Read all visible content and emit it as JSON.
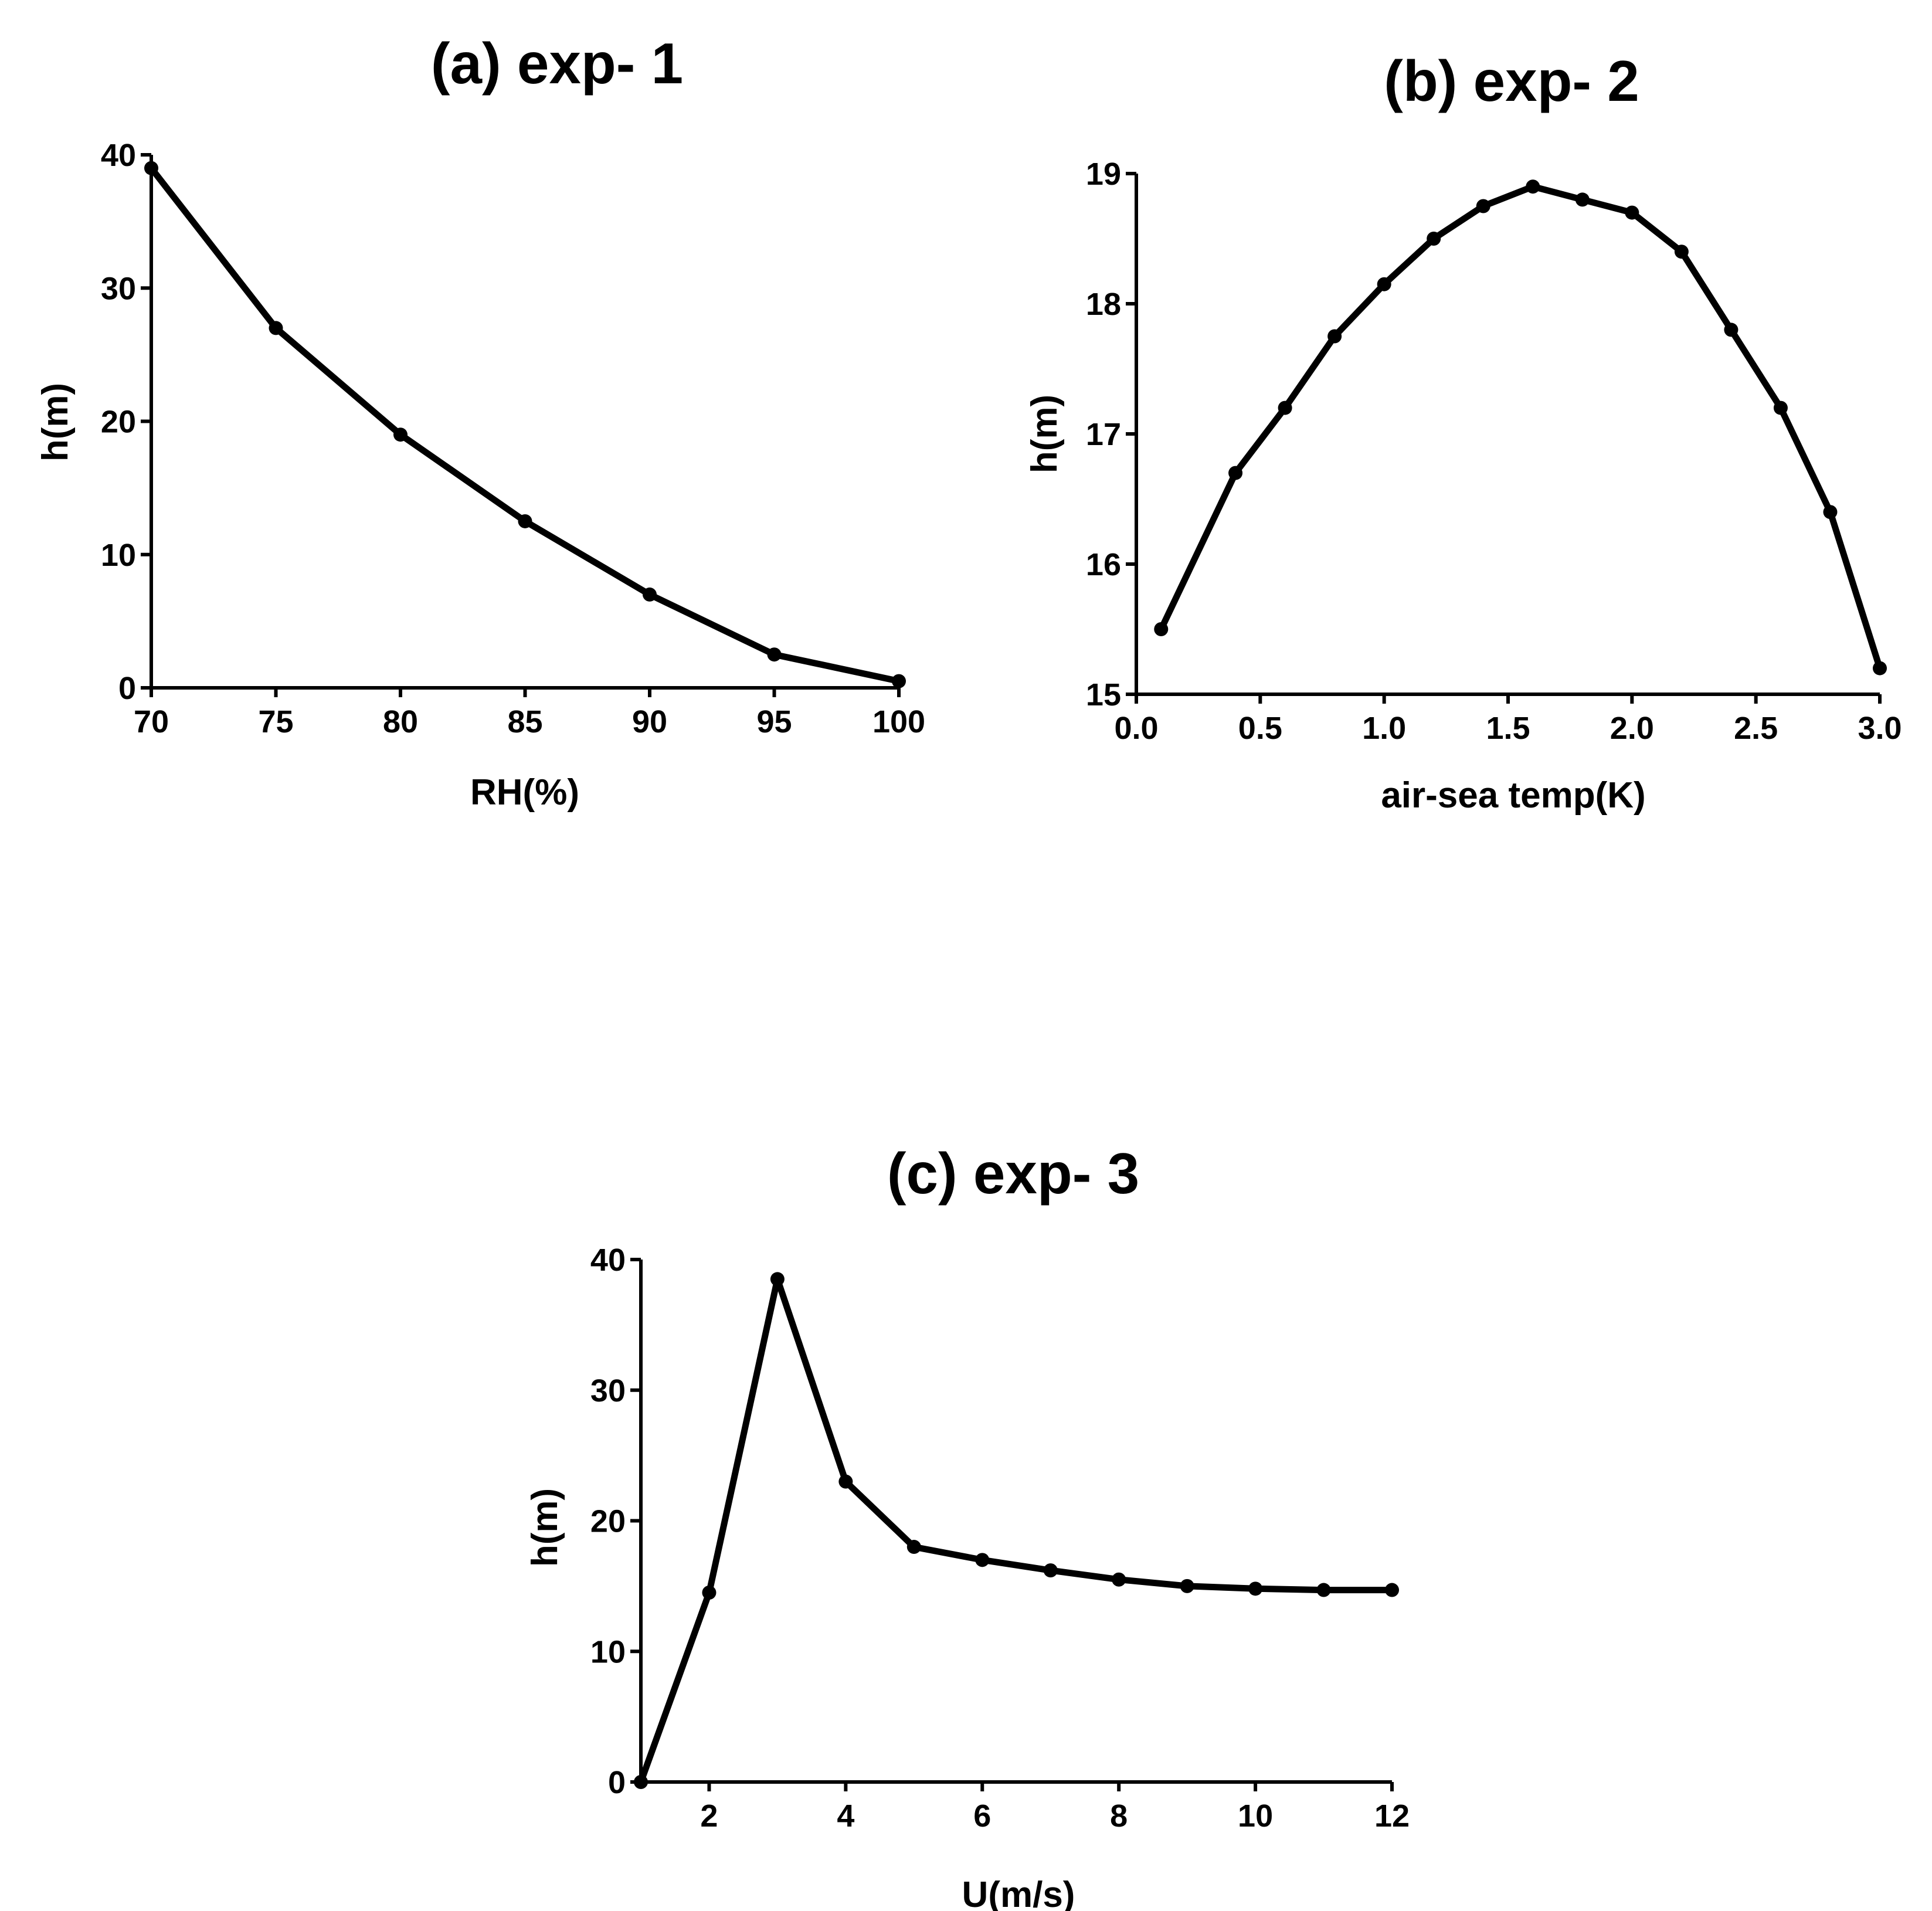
{
  "chart_data": [
    {
      "id": "a",
      "type": "line",
      "title": "(a) exp- 1",
      "xlabel": "RH(%)",
      "ylabel": "h(m)",
      "xlim": [
        70,
        100
      ],
      "ylim": [
        0,
        40
      ],
      "xticks": [
        70,
        75,
        80,
        85,
        90,
        95,
        100
      ],
      "xtick_labels": [
        "70",
        "75",
        "80",
        "85",
        "90",
        "95",
        "100"
      ],
      "yticks": [
        0,
        10,
        20,
        30,
        40
      ],
      "ytick_labels": [
        "0",
        "10",
        "20",
        "30",
        "40"
      ],
      "grid": false,
      "series": [
        {
          "name": "exp-1",
          "x": [
            70,
            75,
            80,
            85,
            90,
            95,
            100
          ],
          "y": [
            39,
            27,
            19,
            12.5,
            7,
            2.5,
            0.5
          ]
        }
      ]
    },
    {
      "id": "b",
      "type": "line",
      "title": "(b) exp- 2",
      "xlabel": "air-sea temp(K)",
      "ylabel": "h(m)",
      "xlim": [
        0.0,
        3.0
      ],
      "ylim": [
        15,
        19
      ],
      "xticks": [
        0.0,
        0.5,
        1.0,
        1.5,
        2.0,
        2.5,
        3.0
      ],
      "xtick_labels": [
        "0.0",
        "0.5",
        "1.0",
        "1.5",
        "2.0",
        "2.5",
        "3.0"
      ],
      "yticks": [
        15,
        16,
        17,
        18,
        19
      ],
      "ytick_labels": [
        "15",
        "16",
        "17",
        "18",
        "19"
      ],
      "grid": false,
      "series": [
        {
          "name": "exp-2",
          "x": [
            0.1,
            0.4,
            0.6,
            0.8,
            1.0,
            1.2,
            1.4,
            1.6,
            1.8,
            2.0,
            2.2,
            2.4,
            2.6,
            2.8,
            3.0
          ],
          "y": [
            15.5,
            16.7,
            17.2,
            17.75,
            18.15,
            18.5,
            18.75,
            18.9,
            18.8,
            18.7,
            18.4,
            17.8,
            17.2,
            16.4,
            15.2
          ]
        }
      ]
    },
    {
      "id": "c",
      "type": "line",
      "title": "(c) exp- 3",
      "xlabel": "U(m/s)",
      "ylabel": "h(m)",
      "xlim": [
        1,
        12
      ],
      "ylim": [
        0,
        40
      ],
      "xticks": [
        2,
        4,
        6,
        8,
        10,
        12
      ],
      "xtick_labels": [
        "2",
        "4",
        "6",
        "8",
        "10",
        "12"
      ],
      "yticks": [
        0,
        10,
        20,
        30,
        40
      ],
      "ytick_labels": [
        "0",
        "10",
        "20",
        "30",
        "40"
      ],
      "grid": false,
      "series": [
        {
          "name": "exp-3",
          "x": [
            1,
            2,
            3,
            4,
            5,
            6,
            7,
            8,
            9,
            10,
            11,
            12
          ],
          "y": [
            0,
            14.5,
            38.5,
            23,
            18,
            17,
            16.2,
            15.5,
            15,
            14.8,
            14.7,
            14.7
          ]
        }
      ]
    }
  ]
}
